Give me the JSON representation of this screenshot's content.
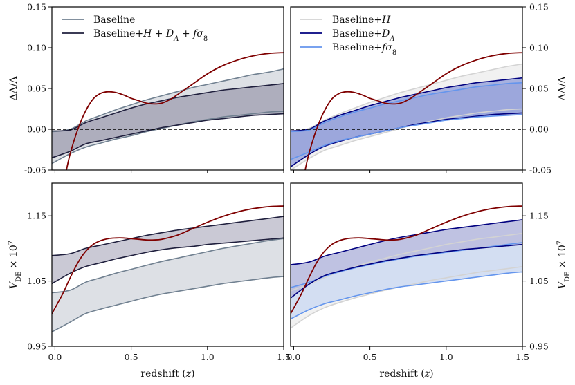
{
  "chart_data": [
    {
      "id": "top-left",
      "type": "line",
      "xlabel": "",
      "ylabel": "ΔΛ/Λ",
      "ylabel_side": "left",
      "xlim": [
        -0.02,
        1.5
      ],
      "ylim": [
        -0.05,
        0.15
      ],
      "xticks": [
        0.0,
        0.5,
        1.0,
        1.5
      ],
      "xtick_labels_shown": false,
      "yticks": [
        -0.05,
        0.0,
        0.05,
        0.1,
        0.15
      ],
      "ytick_labels": [
        "-0.05",
        "0.00",
        "0.05",
        "0.10",
        "0.15"
      ],
      "legend": {
        "placement": "top-left",
        "entries": [
          {
            "label": "Baseline",
            "color": "#708090"
          },
          {
            "label": "Baseline+H + D_A + fσ8",
            "color": "#1f1f3d"
          }
        ]
      },
      "reference_line": {
        "y": 0.0,
        "style": "dashed",
        "color": "#000000"
      },
      "x": [
        -0.02,
        0.1,
        0.2,
        0.3,
        0.4,
        0.5,
        0.6,
        0.7,
        0.8,
        0.9,
        1.0,
        1.1,
        1.2,
        1.3,
        1.4,
        1.5
      ],
      "bands": [
        {
          "name": "Baseline",
          "color": "#708090",
          "fill": "#d9dde2",
          "upper": [
            -0.003,
            0.0,
            0.01,
            0.017,
            0.024,
            0.03,
            0.036,
            0.041,
            0.046,
            0.051,
            0.055,
            0.059,
            0.063,
            0.067,
            0.07,
            0.074
          ],
          "lower": [
            -0.042,
            -0.03,
            -0.022,
            -0.017,
            -0.012,
            -0.008,
            -0.003,
            0.001,
            0.005,
            0.009,
            0.012,
            0.015,
            0.017,
            0.019,
            0.021,
            0.022
          ]
        },
        {
          "name": "Baseline+H + D_A + fσ8",
          "color": "#1f1f3d",
          "fill": "#a8a8b8",
          "upper": [
            -0.002,
            -0.001,
            0.008,
            0.014,
            0.02,
            0.026,
            0.031,
            0.035,
            0.039,
            0.042,
            0.045,
            0.048,
            0.05,
            0.052,
            0.054,
            0.056
          ],
          "lower": [
            -0.035,
            -0.027,
            -0.018,
            -0.014,
            -0.01,
            -0.006,
            -0.002,
            0.002,
            0.005,
            0.008,
            0.011,
            0.013,
            0.015,
            0.017,
            0.018,
            0.019
          ]
        }
      ],
      "curve": {
        "name": "fiducial",
        "color": "#7f0000",
        "x": [
          0.07,
          0.1,
          0.15,
          0.2,
          0.25,
          0.3,
          0.35,
          0.4,
          0.45,
          0.5,
          0.55,
          0.6,
          0.65,
          0.7,
          0.75,
          0.8,
          0.9,
          1.0,
          1.1,
          1.2,
          1.3,
          1.4,
          1.5
        ],
        "y": [
          -0.055,
          -0.03,
          0.0,
          0.022,
          0.037,
          0.044,
          0.046,
          0.045,
          0.042,
          0.038,
          0.035,
          0.032,
          0.031,
          0.032,
          0.036,
          0.042,
          0.055,
          0.068,
          0.078,
          0.085,
          0.09,
          0.093,
          0.094
        ]
      }
    },
    {
      "id": "top-right",
      "type": "line",
      "xlabel": "",
      "ylabel": "ΔΛ/Λ",
      "ylabel_side": "right",
      "xlim": [
        -0.02,
        1.5
      ],
      "ylim": [
        -0.05,
        0.15
      ],
      "xticks": [
        0.0,
        0.5,
        1.0,
        1.5
      ],
      "xtick_labels_shown": false,
      "yticks": [
        -0.05,
        0.0,
        0.05,
        0.1,
        0.15
      ],
      "ytick_labels": [
        "-0.05",
        "0.00",
        "0.05",
        "0.10",
        "0.15"
      ],
      "legend": {
        "placement": "top-left",
        "entries": [
          {
            "label": "Baseline+H",
            "color": "#d3d3d3"
          },
          {
            "label": "Baseline+D_A",
            "color": "#00007f"
          },
          {
            "label": "Baseline+fσ8",
            "color": "#6495ed"
          }
        ]
      },
      "reference_line": {
        "y": 0.0,
        "style": "dashed",
        "color": "#000000"
      },
      "x": [
        -0.02,
        0.1,
        0.2,
        0.3,
        0.4,
        0.5,
        0.6,
        0.7,
        0.8,
        0.9,
        1.0,
        1.1,
        1.2,
        1.3,
        1.4,
        1.5
      ],
      "bands": [
        {
          "name": "Baseline+H",
          "color": "#d3d3d3",
          "fill": "#f0f0f0",
          "upper": [
            -0.003,
            0.001,
            0.011,
            0.019,
            0.026,
            0.033,
            0.039,
            0.045,
            0.05,
            0.055,
            0.06,
            0.065,
            0.069,
            0.073,
            0.077,
            0.08
          ],
          "lower": [
            -0.05,
            -0.036,
            -0.026,
            -0.02,
            -0.014,
            -0.009,
            -0.004,
            0.001,
            0.006,
            0.01,
            0.014,
            0.017,
            0.02,
            0.022,
            0.024,
            0.025
          ]
        },
        {
          "name": "Baseline+D_A",
          "color": "#00007f",
          "fill": "#9aa6dc",
          "upper": [
            -0.002,
            0.0,
            0.01,
            0.017,
            0.023,
            0.029,
            0.034,
            0.039,
            0.043,
            0.047,
            0.051,
            0.054,
            0.057,
            0.059,
            0.061,
            0.063
          ],
          "lower": [
            -0.046,
            -0.031,
            -0.021,
            -0.015,
            -0.01,
            -0.006,
            -0.002,
            0.002,
            0.006,
            0.009,
            0.012,
            0.014,
            0.016,
            0.018,
            0.019,
            0.02
          ]
        },
        {
          "name": "Baseline+fσ8",
          "color": "#6495ed",
          "fill": "#9aa6dc",
          "upper": [
            -0.003,
            -0.001,
            0.008,
            0.015,
            0.021,
            0.026,
            0.031,
            0.035,
            0.039,
            0.043,
            0.046,
            0.049,
            0.052,
            0.054,
            0.056,
            0.057
          ],
          "lower": [
            -0.037,
            -0.028,
            -0.02,
            -0.014,
            -0.01,
            -0.006,
            -0.002,
            0.002,
            0.005,
            0.008,
            0.011,
            0.013,
            0.015,
            0.016,
            0.017,
            0.018
          ]
        }
      ],
      "curve": {
        "name": "fiducial",
        "color": "#7f0000",
        "x": [
          0.07,
          0.1,
          0.15,
          0.2,
          0.25,
          0.3,
          0.35,
          0.4,
          0.45,
          0.5,
          0.55,
          0.6,
          0.65,
          0.7,
          0.75,
          0.8,
          0.9,
          1.0,
          1.1,
          1.2,
          1.3,
          1.4,
          1.5
        ],
        "y": [
          -0.055,
          -0.03,
          0.0,
          0.022,
          0.037,
          0.044,
          0.046,
          0.045,
          0.042,
          0.038,
          0.035,
          0.032,
          0.031,
          0.032,
          0.036,
          0.042,
          0.055,
          0.068,
          0.078,
          0.085,
          0.09,
          0.093,
          0.094
        ]
      }
    },
    {
      "id": "bottom-left",
      "type": "line",
      "xlabel": "redshift (z)",
      "ylabel": "V_DE × 10^7",
      "ylabel_side": "left",
      "xlim": [
        -0.02,
        1.5
      ],
      "ylim": [
        0.95,
        1.2
      ],
      "xticks": [
        0.0,
        0.5,
        1.0,
        1.5
      ],
      "xtick_labels": [
        "0.0",
        "0.5",
        "1.0",
        "1.5"
      ],
      "yticks": [
        0.95,
        1.05,
        1.15
      ],
      "ytick_labels": [
        "0.95",
        "1.05",
        "1.15"
      ],
      "x": [
        -0.02,
        0.1,
        0.2,
        0.3,
        0.4,
        0.5,
        0.6,
        0.7,
        0.8,
        0.9,
        1.0,
        1.1,
        1.2,
        1.3,
        1.4,
        1.5
      ],
      "bands": [
        {
          "name": "Baseline",
          "color": "#708090",
          "fill": "#d9dde2",
          "upper": [
            1.032,
            1.036,
            1.048,
            1.055,
            1.062,
            1.068,
            1.074,
            1.08,
            1.085,
            1.09,
            1.095,
            1.1,
            1.104,
            1.108,
            1.112,
            1.115
          ],
          "lower": [
            0.972,
            0.987,
            1.0,
            1.007,
            1.013,
            1.019,
            1.025,
            1.03,
            1.034,
            1.038,
            1.042,
            1.046,
            1.049,
            1.052,
            1.055,
            1.057
          ]
        },
        {
          "name": "Baseline+H + D_A + fσ8",
          "color": "#1f1f3d",
          "fill": "#c4c3d0",
          "upper": [
            1.089,
            1.092,
            1.1,
            1.105,
            1.11,
            1.115,
            1.12,
            1.124,
            1.128,
            1.131,
            1.134,
            1.137,
            1.14,
            1.143,
            1.146,
            1.149
          ],
          "lower": [
            1.046,
            1.062,
            1.072,
            1.078,
            1.084,
            1.089,
            1.094,
            1.098,
            1.101,
            1.103,
            1.106,
            1.108,
            1.11,
            1.112,
            1.114,
            1.116
          ]
        }
      ],
      "curve": {
        "name": "fiducial",
        "color": "#7f0000",
        "x": [
          -0.02,
          0.05,
          0.1,
          0.15,
          0.2,
          0.25,
          0.3,
          0.35,
          0.4,
          0.45,
          0.5,
          0.55,
          0.6,
          0.65,
          0.7,
          0.8,
          0.9,
          1.0,
          1.1,
          1.2,
          1.3,
          1.4,
          1.5
        ],
        "y": [
          1.0,
          1.03,
          1.055,
          1.078,
          1.095,
          1.106,
          1.112,
          1.115,
          1.116,
          1.116,
          1.115,
          1.114,
          1.113,
          1.113,
          1.114,
          1.12,
          1.13,
          1.14,
          1.149,
          1.156,
          1.161,
          1.164,
          1.165
        ]
      }
    },
    {
      "id": "bottom-right",
      "type": "line",
      "xlabel": "redshift (z)",
      "ylabel": "V_DE × 10^7",
      "ylabel_side": "right",
      "xlim": [
        -0.02,
        1.5
      ],
      "ylim": [
        0.95,
        1.2
      ],
      "xticks": [
        0.0,
        0.5,
        1.0,
        1.5
      ],
      "xtick_labels": [
        "0.0",
        "0.5",
        "1.0",
        "1.5"
      ],
      "yticks": [
        0.95,
        1.05,
        1.15
      ],
      "ytick_labels": [
        "0.95",
        "1.05",
        "1.15"
      ],
      "x": [
        -0.02,
        0.1,
        0.2,
        0.3,
        0.4,
        0.5,
        0.6,
        0.7,
        0.8,
        0.9,
        1.0,
        1.1,
        1.2,
        1.3,
        1.4,
        1.5
      ],
      "bands": [
        {
          "name": "Baseline+H",
          "color": "#d3d3d3",
          "fill": "#f0f0f0",
          "upper": [
            1.035,
            1.045,
            1.055,
            1.064,
            1.072,
            1.079,
            1.085,
            1.091,
            1.096,
            1.101,
            1.106,
            1.11,
            1.114,
            1.117,
            1.12,
            1.123
          ],
          "lower": [
            0.978,
            0.997,
            1.009,
            1.017,
            1.024,
            1.03,
            1.036,
            1.041,
            1.046,
            1.051,
            1.055,
            1.059,
            1.063,
            1.066,
            1.069,
            1.072
          ]
        },
        {
          "name": "Baseline+fσ8",
          "color": "#6495ed",
          "fill": "#cfdcf2",
          "upper": [
            1.04,
            1.048,
            1.057,
            1.064,
            1.07,
            1.075,
            1.08,
            1.084,
            1.088,
            1.091,
            1.094,
            1.097,
            1.1,
            1.103,
            1.106,
            1.109
          ],
          "lower": [
            0.992,
            1.006,
            1.015,
            1.021,
            1.027,
            1.032,
            1.037,
            1.041,
            1.044,
            1.047,
            1.05,
            1.053,
            1.056,
            1.059,
            1.062,
            1.064
          ]
        },
        {
          "name": "Baseline+D_A",
          "color": "#00007f",
          "fill": "#b8bbdf",
          "upper": [
            1.075,
            1.079,
            1.088,
            1.094,
            1.1,
            1.106,
            1.112,
            1.117,
            1.121,
            1.125,
            1.129,
            1.132,
            1.135,
            1.138,
            1.141,
            1.144
          ],
          "lower": [
            1.024,
            1.045,
            1.058,
            1.065,
            1.071,
            1.076,
            1.081,
            1.085,
            1.089,
            1.092,
            1.095,
            1.098,
            1.1,
            1.102,
            1.104,
            1.106
          ]
        }
      ],
      "curve": {
        "name": "fiducial",
        "color": "#7f0000",
        "x": [
          -0.02,
          0.05,
          0.1,
          0.15,
          0.2,
          0.25,
          0.3,
          0.35,
          0.4,
          0.45,
          0.5,
          0.55,
          0.6,
          0.65,
          0.7,
          0.8,
          0.9,
          1.0,
          1.1,
          1.2,
          1.3,
          1.4,
          1.5
        ],
        "y": [
          1.0,
          1.03,
          1.055,
          1.078,
          1.095,
          1.106,
          1.112,
          1.115,
          1.116,
          1.116,
          1.115,
          1.114,
          1.113,
          1.113,
          1.114,
          1.12,
          1.13,
          1.14,
          1.149,
          1.156,
          1.161,
          1.164,
          1.165
        ]
      }
    }
  ]
}
